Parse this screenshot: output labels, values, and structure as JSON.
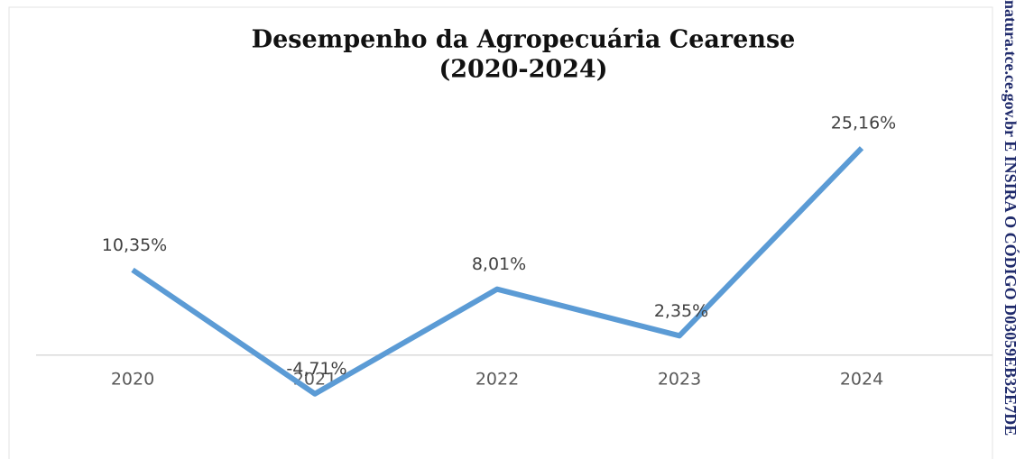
{
  "chart_data": {
    "type": "line",
    "title_lines": [
      "Desempenho da Agropecuária Cearense",
      "(2020-2024)"
    ],
    "categories": [
      "2020",
      "2021",
      "2022",
      "2023",
      "2024"
    ],
    "series": [
      {
        "color": "#5b9bd5",
        "values": [
          10.35,
          -4.71,
          8.01,
          2.35,
          25.16
        ],
        "value_labels": [
          "10,35%",
          "-4,71%",
          "8,01%",
          "2,35%",
          "25,16%"
        ]
      }
    ],
    "ylim": [
      -10,
      30
    ]
  },
  "watermark": "natura.tce.ce.gov.br E INSIRA O CÓDIGO D03059EB32E7DE"
}
